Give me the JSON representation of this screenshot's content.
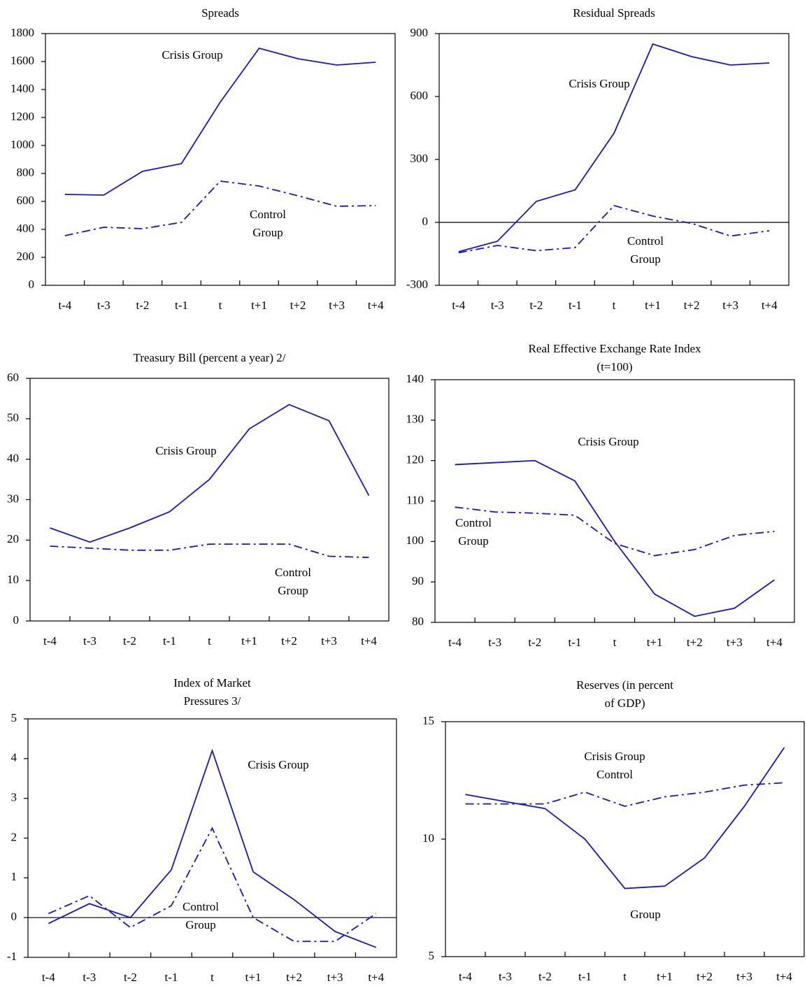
{
  "chart_data": [
    {
      "type": "line",
      "title": [
        "Spreads"
      ],
      "categories": [
        "t-4",
        "t-3",
        "t-2",
        "t-1",
        "t",
        "t+1",
        "t+2",
        "t+3",
        "t+4"
      ],
      "ylim": [
        0,
        1800
      ],
      "yticks": [
        0,
        200,
        400,
        600,
        800,
        1000,
        1200,
        1400,
        1600,
        1800
      ],
      "annotations": [
        "Crisis Group",
        "Control",
        "Group"
      ],
      "series": [
        {
          "color": "#1515d6",
          "style": "solid",
          "values": [
            650,
            645,
            815,
            870,
            1310,
            1695,
            1620,
            1575,
            1595
          ]
        },
        {
          "color": "#1515d6",
          "style": "dashdot",
          "values": [
            355,
            415,
            405,
            450,
            745,
            710,
            640,
            565,
            570
          ]
        }
      ]
    },
    {
      "type": "line",
      "title": [
        "Residual Spreads"
      ],
      "categories": [
        "t-4",
        "t-3",
        "t-2",
        "t-1",
        "t",
        "t+1",
        "t+2",
        "t+3",
        "t+4"
      ],
      "ylim": [
        -300,
        900
      ],
      "yticks": [
        -300,
        0,
        300,
        600,
        900
      ],
      "annotations": [
        "Crisis Group",
        "Control",
        "Group"
      ],
      "series": [
        {
          "color": "#1515d6",
          "style": "solid",
          "values": [
            -140,
            -90,
            100,
            155,
            425,
            850,
            790,
            750,
            760
          ]
        },
        {
          "color": "#1515d6",
          "style": "dashdot",
          "values": [
            -145,
            -110,
            -135,
            -120,
            80,
            30,
            -5,
            -65,
            -40
          ]
        }
      ]
    },
    {
      "type": "line",
      "title": [
        "Treasury Bill (percent a year) 2/"
      ],
      "categories": [
        "t-4",
        "t-3",
        "t-2",
        "t-1",
        "t",
        "t+1",
        "t+2",
        "t+3",
        "t+4"
      ],
      "ylim": [
        0,
        60
      ],
      "yticks": [
        0,
        10,
        20,
        30,
        40,
        50,
        60
      ],
      "annotations": [
        "Crisis Group",
        "Control",
        "Group"
      ],
      "series": [
        {
          "color": "#1515d6",
          "style": "solid",
          "values": [
            23,
            19.5,
            23,
            27,
            35,
            47.5,
            53.5,
            49.5,
            31
          ]
        },
        {
          "color": "#1515d6",
          "style": "dashdot",
          "values": [
            18.5,
            18,
            17.5,
            17.5,
            19,
            19,
            19,
            16,
            15.7
          ]
        }
      ]
    },
    {
      "type": "line",
      "title": [
        "Real Effective Exchange Rate Index",
        "(t=100)"
      ],
      "categories": [
        "t-4",
        "t-3",
        "t-2",
        "t-1",
        "t",
        "t+1",
        "t+2",
        "t+3",
        "t+4"
      ],
      "ylim": [
        80,
        140
      ],
      "yticks": [
        80,
        90,
        100,
        110,
        120,
        130,
        140
      ],
      "annotations": [
        "Crisis Group",
        "Control",
        "Group"
      ],
      "series": [
        {
          "color": "#1515d6",
          "style": "solid",
          "values": [
            119,
            119.5,
            120,
            115,
            100,
            87,
            81.5,
            83.5,
            90.5
          ]
        },
        {
          "color": "#1515d6",
          "style": "dashdot",
          "values": [
            108.5,
            107.3,
            107,
            106.5,
            99.5,
            96.5,
            98,
            101.5,
            102.5
          ]
        }
      ]
    },
    {
      "type": "line",
      "title": [
        "Index of Market",
        "Pressures 3/"
      ],
      "categories": [
        "t-4",
        "t-3",
        "t-2",
        "t-1",
        "t",
        "t+1",
        "t+2",
        "t+3",
        "t+4"
      ],
      "ylim": [
        -1,
        5
      ],
      "yticks": [
        -1,
        0,
        1,
        2,
        3,
        4,
        5
      ],
      "annotations": [
        "Crisis Group",
        "Control",
        "Group"
      ],
      "series": [
        {
          "color": "#1515d6",
          "style": "solid",
          "values": [
            -0.15,
            0.35,
            0,
            1.2,
            4.2,
            1.15,
            0.45,
            -0.35,
            -0.75
          ]
        },
        {
          "color": "#1515d6",
          "style": "dashdot",
          "values": [
            0.1,
            0.55,
            -0.25,
            0.3,
            2.25,
            0,
            -0.6,
            -0.6,
            0.1
          ]
        }
      ]
    },
    {
      "type": "line",
      "title": [
        "Reserves (in percent",
        "of GDP)"
      ],
      "categories": [
        "t-4",
        "t-3",
        "t-2",
        "t-1",
        "t",
        "t+1",
        "t+2",
        "t+3",
        "t+4"
      ],
      "ylim": [
        5,
        15
      ],
      "yticks": [
        5,
        10,
        15
      ],
      "annotations": [
        "Crisis Group",
        "Control",
        "Group"
      ],
      "series": [
        {
          "color": "#1515d6",
          "style": "solid",
          "values": [
            11.9,
            11.6,
            11.3,
            10.0,
            7.9,
            8.0,
            9.2,
            11.4,
            13.9
          ]
        },
        {
          "color": "#1515d6",
          "style": "dashdot",
          "values": [
            11.5,
            11.5,
            11.5,
            12.0,
            11.4,
            11.8,
            12.0,
            12.3,
            12.4
          ]
        }
      ]
    }
  ]
}
